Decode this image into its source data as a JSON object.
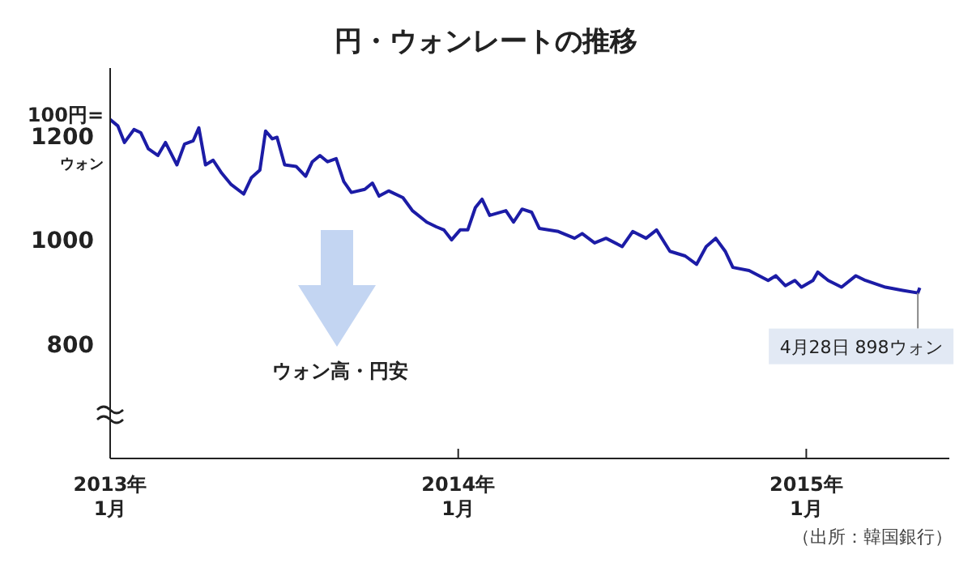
{
  "chart_data": {
    "type": "line",
    "title": "円・ウォンレートの推移",
    "x": [
      "2013-01-01",
      "2013-01-09",
      "2013-01-16",
      "2013-01-26",
      "2013-02-02",
      "2013-02-10",
      "2013-02-20",
      "2013-02-28",
      "2013-03-12",
      "2013-03-20",
      "2013-03-29",
      "2013-04-04",
      "2013-04-11",
      "2013-04-19",
      "2013-04-28",
      "2013-05-08",
      "2013-05-21",
      "2013-05-29",
      "2013-06-07",
      "2013-06-13",
      "2013-06-20",
      "2013-06-25",
      "2013-07-03",
      "2013-07-15",
      "2013-07-25",
      "2013-08-01",
      "2013-08-09",
      "2013-08-17",
      "2013-08-26",
      "2013-09-03",
      "2013-09-11",
      "2013-09-25",
      "2013-10-03",
      "2013-10-10",
      "2013-10-20",
      "2013-11-04",
      "2013-11-14",
      "2013-11-29",
      "2013-12-09",
      "2013-12-17",
      "2013-12-25",
      "2014-01-03",
      "2014-01-11",
      "2014-01-19",
      "2014-01-26",
      "2014-02-03",
      "2014-02-20",
      "2014-02-28",
      "2014-03-09",
      "2014-03-19",
      "2014-03-27",
      "2014-04-16",
      "2014-05-03",
      "2014-05-11",
      "2014-05-24",
      "2014-06-05",
      "2014-06-22",
      "2014-07-03",
      "2014-07-17",
      "2014-07-28",
      "2014-08-11",
      "2014-08-27",
      "2014-09-08",
      "2014-09-18",
      "2014-09-28",
      "2014-10-08",
      "2014-10-16",
      "2014-11-02",
      "2014-11-22",
      "2014-11-30",
      "2014-12-10",
      "2014-12-20",
      "2014-12-27",
      "2015-01-08",
      "2015-01-13",
      "2015-01-24",
      "2015-02-07",
      "2015-02-22",
      "2015-03-04",
      "2015-03-25",
      "2015-04-12",
      "2015-04-28",
      "2015-04-30"
    ],
    "series": [
      {
        "color": "#1c1ca6",
        "values": [
          1231,
          1219,
          1187,
          1212,
          1206,
          1175,
          1162,
          1187,
          1144,
          1184,
          1190,
          1215,
          1144,
          1153,
          1128,
          1106,
          1088,
          1119,
          1134,
          1209,
          1194,
          1197,
          1144,
          1141,
          1122,
          1150,
          1162,
          1150,
          1156,
          1112,
          1091,
          1097,
          1109,
          1084,
          1094,
          1081,
          1056,
          1034,
          1025,
          1019,
          1000,
          1019,
          1019,
          1062,
          1078,
          1047,
          1056,
          1034,
          1059,
          1053,
          1022,
          1016,
          1003,
          1012,
          994,
          1003,
          987,
          1016,
          1003,
          1019,
          978,
          969,
          953,
          987,
          1003,
          978,
          947,
          941,
          922,
          931,
          912,
          922,
          909,
          922,
          938,
          922,
          909,
          931,
          922,
          909,
          903,
          898,
          908
        ]
      }
    ],
    "xlim": [
      "2013-01-01",
      "2015-05-31"
    ],
    "xticks": [
      {
        "value": "2013-01-01",
        "label": "2013年\n1月"
      },
      {
        "value": "2014-01-01",
        "label": "2014年\n1月"
      },
      {
        "value": "2015-01-01",
        "label": "2015年\n1月"
      }
    ],
    "ylim": [
      580,
      1330
    ],
    "yticks": [
      800,
      1000,
      1200
    ],
    "grid": false,
    "legend": false,
    "marker": "none",
    "line_style": "solid",
    "annotations": [
      "100円=",
      "ウォン",
      "ウォン高・円安",
      {
        "text": "4月28日 898ウォン",
        "x": "2015-04-28",
        "y": 898
      },
      "（出所：韓国銀行）"
    ]
  }
}
